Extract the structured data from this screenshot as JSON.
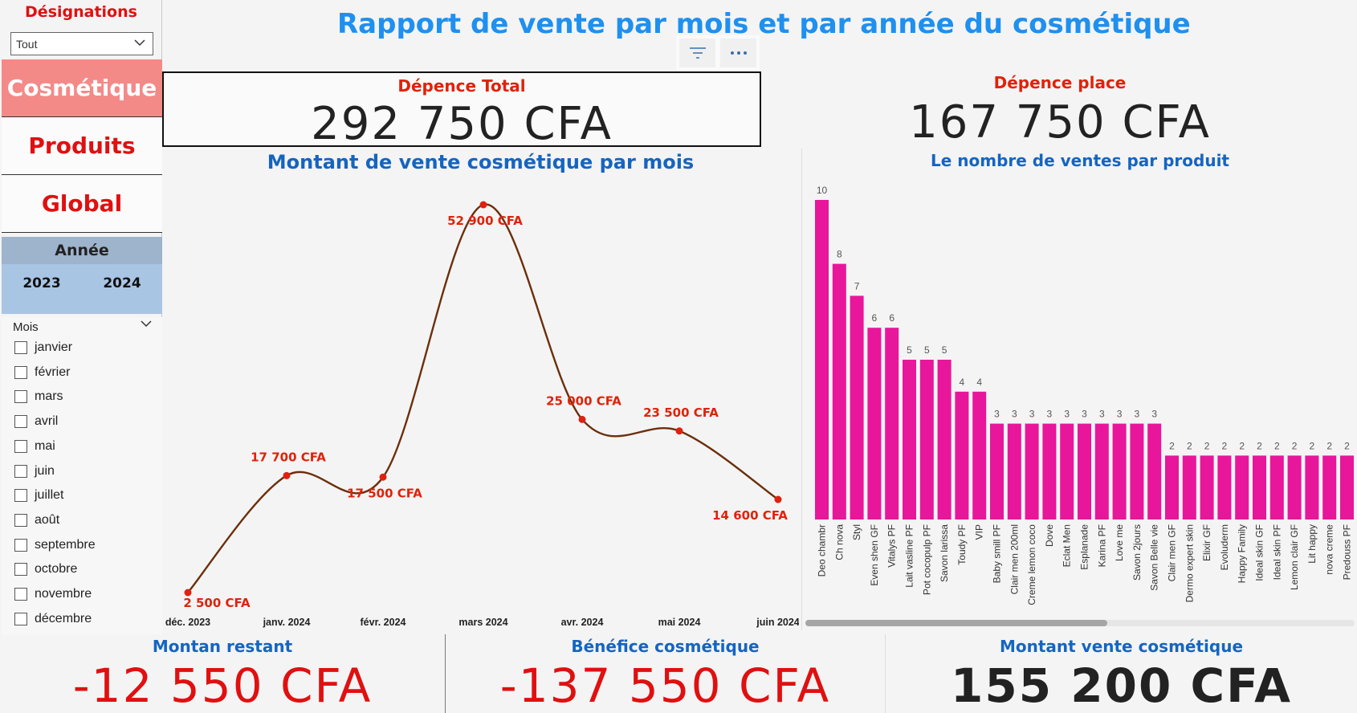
{
  "sidebar": {
    "designations_title": "Désignations",
    "designations_value": "Tout",
    "nav": [
      {
        "label": "Cosmétique",
        "active": true
      },
      {
        "label": "Produits",
        "active": false
      },
      {
        "label": "Global",
        "active": false
      }
    ],
    "year_title": "Année",
    "years": [
      "2023",
      "2024"
    ],
    "month_title": "Mois",
    "months": [
      "janvier",
      "février",
      "mars",
      "avril",
      "mai",
      "juin",
      "juillet",
      "août",
      "septembre",
      "octobre",
      "novembre",
      "décembre"
    ]
  },
  "header": {
    "title": "Rapport de vente par mois et par année du cosmétique",
    "toolbar": {
      "filter_icon": "filter-icon",
      "more_icon": "more-options-icon"
    }
  },
  "kpis": {
    "total": {
      "label": "Dépence Total",
      "value": "292 750 CFA"
    },
    "place": {
      "label": "Dépence place",
      "value": "167 750 CFA"
    },
    "restant": {
      "label": "Montan restant",
      "value": "-12 550 CFA"
    },
    "benefice": {
      "label": "Bénéfice cosmétique",
      "value": "-137 550 CFA"
    },
    "vente": {
      "label": "Montant vente cosmétique",
      "value": "155 200 CFA"
    }
  },
  "colors": {
    "line": "#6b2f0c",
    "point": "#e02010",
    "label": "#e0220a",
    "bar": "#e8169a",
    "title_blue": "#1e90f0"
  },
  "chart_data": [
    {
      "type": "line",
      "title": "Montant de vente cosmétique par mois",
      "categories": [
        "déc. 2023",
        "janv. 2024",
        "févr. 2024",
        "mars 2024",
        "avr. 2024",
        "mai 2024",
        "juin 2024"
      ],
      "values": [
        2500,
        17700,
        17500,
        52900,
        25000,
        23500,
        14600
      ],
      "data_labels": [
        "2 500 CFA",
        "17 700 CFA",
        "17 500 CFA",
        "52 900 CFA",
        "25 000 CFA",
        "23 500 CFA",
        "14 600 CFA"
      ],
      "ylim": [
        2500,
        52900
      ],
      "grid": false
    },
    {
      "type": "bar",
      "title": "Le nombre de ventes par produit",
      "categories": [
        "Deo chambr",
        "Ch nova",
        "Styl",
        "Even shen GF",
        "Vitalys PF",
        "Lait vasline PF",
        "Pot cocopulp PF",
        "Savon larissa",
        "Toudy PF",
        "VIP",
        "Baby smill PF",
        "Clair men 200ml",
        "Creme lemon coco",
        "Dove",
        "Eclat Men",
        "Esplanade",
        "Karina PF",
        "Love me",
        "Savon 2jours",
        "Savon Belle vie",
        "Clair men GF",
        "Dermo expert skin",
        "Elixir GF",
        "Evoluderm",
        "Happy Family",
        "Ideal skin GF",
        "Ideal skin PF",
        "Lemon clair GF",
        "Lit happy",
        "nova creme",
        "Predouss PF"
      ],
      "values": [
        10,
        8,
        7,
        6,
        6,
        5,
        5,
        5,
        4,
        4,
        3,
        3,
        3,
        3,
        3,
        3,
        3,
        3,
        3,
        3,
        2,
        2,
        2,
        2,
        2,
        2,
        2,
        2,
        2,
        2,
        2
      ],
      "ylim": [
        0,
        10
      ],
      "grid": false
    }
  ]
}
